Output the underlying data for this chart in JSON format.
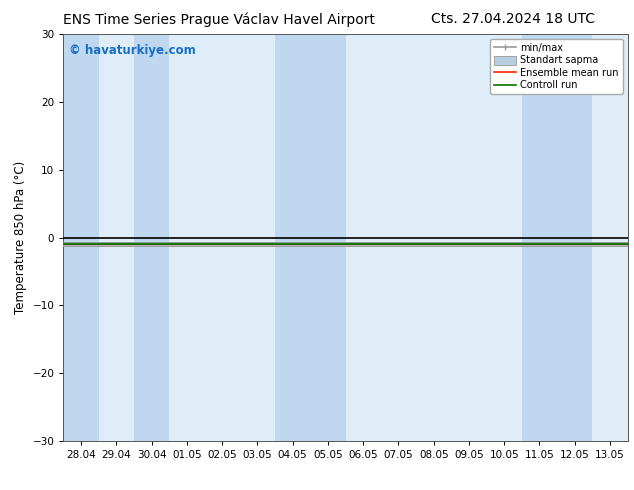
{
  "title_left": "ENS Time Series Prague Václav Havel Airport",
  "title_right": "Cts. 27.04.2024 18 UTC",
  "ylabel": "Temperature 850 hPa (°C)",
  "watermark": "© havaturkiye.com",
  "watermark_color": "#1a6fc4",
  "ylim": [
    -30,
    30
  ],
  "yticks": [
    -30,
    -20,
    -10,
    0,
    10,
    20,
    30
  ],
  "x_labels": [
    "28.04",
    "29.04",
    "30.04",
    "01.05",
    "02.05",
    "03.05",
    "04.05",
    "05.05",
    "06.05",
    "07.05",
    "08.05",
    "09.05",
    "10.05",
    "11.05",
    "12.05",
    "13.05"
  ],
  "n_xticks": 16,
  "flat_value": -1.0,
  "background_color": "#ffffff",
  "plot_bg_color": "#deedf8",
  "shaded_cols_dark": [
    0,
    2,
    6,
    7,
    13,
    14
  ],
  "shaded_color_dark": "#c0d8ef",
  "minmax_color": "#999999",
  "stddev_color": "#b8cfe0",
  "ensemble_mean_color": "#ff2200",
  "control_run_color": "#007700",
  "legend_labels": [
    "min/max",
    "Standart sapma",
    "Ensemble mean run",
    "Controll run"
  ],
  "title_fontsize": 10,
  "axis_label_fontsize": 8.5,
  "tick_fontsize": 7.5,
  "watermark_fontsize": 8.5
}
